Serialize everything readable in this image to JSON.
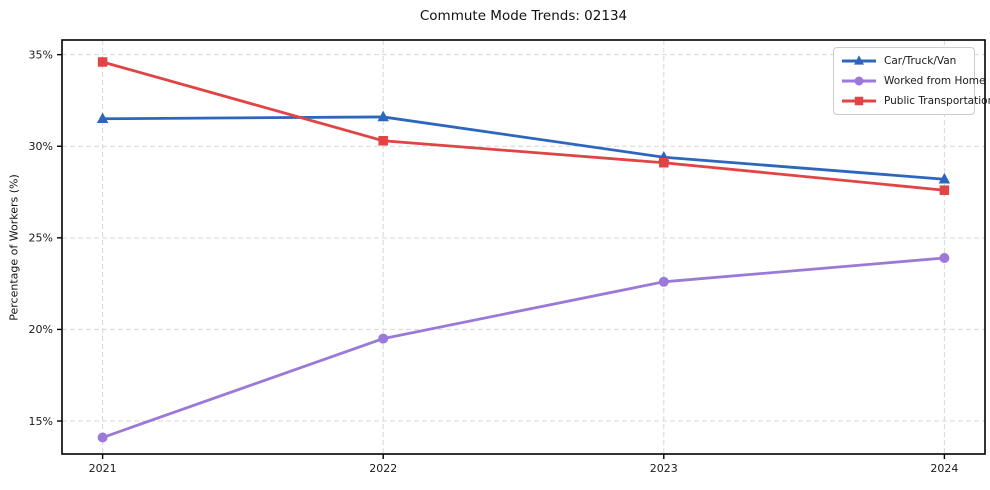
{
  "figure": {
    "background": "#ffffff"
  },
  "chart_data": {
    "type": "line",
    "title": "Commute Mode Trends: 02134",
    "xlabel": "",
    "ylabel": "Percentage of Workers (%)",
    "categories": [
      "2021",
      "2022",
      "2023",
      "2024"
    ],
    "series": [
      {
        "name": "Car/Truck/Van",
        "color": "#2c66bd",
        "marker": "triangle",
        "values": [
          31.5,
          31.6,
          29.4,
          28.2
        ]
      },
      {
        "name": "Worked from Home",
        "color": "#9a79d8",
        "marker": "circle",
        "values": [
          14.1,
          19.5,
          22.6,
          23.9
        ]
      },
      {
        "name": "Public Transportation",
        "color": "#e04444",
        "marker": "square",
        "values": [
          34.6,
          30.3,
          29.1,
          27.6
        ]
      }
    ],
    "draw_order": [
      0,
      1,
      2
    ],
    "ylim": [
      13.2,
      35.8
    ],
    "yticks": [
      15,
      20,
      25,
      30,
      35
    ],
    "ytick_suffix": "%",
    "grid": true,
    "grid_style": "dashed",
    "grid_color": "#d7d7d7",
    "axis_color": "#000000",
    "tick_label_color": "#1a1a1a",
    "legend_position": "upper right"
  }
}
